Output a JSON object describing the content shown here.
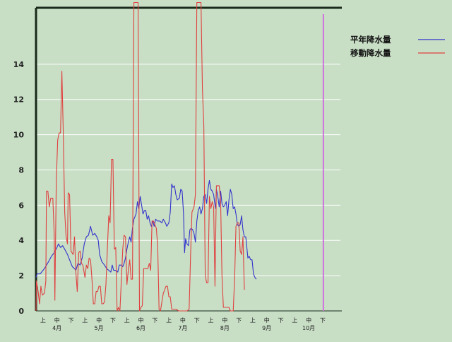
{
  "chart_data": {
    "type": "line",
    "background_color": "#c8dfc5",
    "grid": "horizontal",
    "grid_color": "#ffffff",
    "title": "",
    "xlabel": "",
    "ylabel": "",
    "ylim": [
      0,
      17.2
    ],
    "y_ticks": [
      0,
      2,
      4,
      6,
      8,
      10,
      12,
      14
    ],
    "legend_position": "top-right",
    "dekad_labels": [
      "上",
      "中",
      "下",
      "上",
      "中",
      "下",
      "上",
      "中",
      "下",
      "上",
      "中",
      "下",
      "上",
      "中",
      "下",
      "上",
      "中",
      "下",
      "上",
      "中",
      "下"
    ],
    "month_labels": [
      "4月",
      "5月",
      "6月",
      "7月",
      "8月",
      "9月",
      "10月"
    ],
    "current_marker": {
      "dekad": 20.55,
      "color": "#d070e0"
    },
    "series": [
      {
        "name": "平年降水量",
        "color": "#3333cc",
        "points": [
          [
            0.0,
            1.9
          ],
          [
            0.08,
            2.1
          ],
          [
            0.3,
            2.1
          ],
          [
            0.6,
            2.4
          ],
          [
            0.9,
            2.8
          ],
          [
            1.1,
            3.1
          ],
          [
            1.3,
            3.3
          ],
          [
            1.5,
            3.6
          ],
          [
            1.6,
            3.8
          ],
          [
            1.75,
            3.6
          ],
          [
            1.9,
            3.7
          ],
          [
            2.05,
            3.5
          ],
          [
            2.25,
            3.2
          ],
          [
            2.45,
            2.8
          ],
          [
            2.6,
            2.5
          ],
          [
            2.75,
            2.4
          ],
          [
            2.85,
            2.3
          ],
          [
            3.0,
            2.7
          ],
          [
            3.15,
            2.6
          ],
          [
            3.3,
            3.0
          ],
          [
            3.45,
            3.8
          ],
          [
            3.6,
            4.2
          ],
          [
            3.75,
            4.3
          ],
          [
            3.9,
            4.8
          ],
          [
            4.05,
            4.3
          ],
          [
            4.2,
            4.4
          ],
          [
            4.35,
            4.2
          ],
          [
            4.45,
            4.0
          ],
          [
            4.55,
            3.2
          ],
          [
            4.7,
            2.8
          ],
          [
            4.9,
            2.6
          ],
          [
            5.05,
            2.4
          ],
          [
            5.2,
            2.3
          ],
          [
            5.35,
            2.2
          ],
          [
            5.45,
            2.6
          ],
          [
            5.55,
            2.3
          ],
          [
            5.7,
            2.3
          ],
          [
            5.85,
            2.2
          ],
          [
            5.95,
            2.6
          ],
          [
            6.1,
            2.6
          ],
          [
            6.2,
            2.5
          ],
          [
            6.3,
            2.7
          ],
          [
            6.4,
            3.0
          ],
          [
            6.5,
            3.5
          ],
          [
            6.6,
            3.9
          ],
          [
            6.7,
            4.2
          ],
          [
            6.8,
            3.9
          ],
          [
            6.9,
            4.7
          ],
          [
            7.0,
            5.2
          ],
          [
            7.15,
            5.5
          ],
          [
            7.25,
            6.2
          ],
          [
            7.35,
            5.8
          ],
          [
            7.45,
            6.5
          ],
          [
            7.55,
            6.0
          ],
          [
            7.65,
            5.5
          ],
          [
            7.75,
            5.7
          ],
          [
            7.85,
            5.7
          ],
          [
            7.95,
            5.2
          ],
          [
            8.05,
            5.4
          ],
          [
            8.15,
            5.0
          ],
          [
            8.25,
            4.8
          ],
          [
            8.35,
            5.1
          ],
          [
            8.45,
            4.8
          ],
          [
            8.55,
            5.2
          ],
          [
            8.7,
            5.1
          ],
          [
            8.85,
            5.1
          ],
          [
            9.0,
            5.0
          ],
          [
            9.1,
            5.2
          ],
          [
            9.25,
            5.0
          ],
          [
            9.35,
            4.8
          ],
          [
            9.5,
            5.0
          ],
          [
            9.6,
            5.6
          ],
          [
            9.7,
            7.2
          ],
          [
            9.8,
            7.0
          ],
          [
            9.9,
            7.1
          ],
          [
            10.0,
            6.6
          ],
          [
            10.1,
            6.3
          ],
          [
            10.25,
            6.4
          ],
          [
            10.35,
            6.9
          ],
          [
            10.45,
            6.8
          ],
          [
            10.55,
            5.5
          ],
          [
            10.62,
            3.3
          ],
          [
            10.7,
            4.1
          ],
          [
            10.8,
            3.8
          ],
          [
            10.9,
            3.7
          ],
          [
            11.0,
            4.6
          ],
          [
            11.1,
            4.7
          ],
          [
            11.2,
            4.6
          ],
          [
            11.3,
            4.4
          ],
          [
            11.4,
            3.9
          ],
          [
            11.5,
            5.1
          ],
          [
            11.6,
            5.7
          ],
          [
            11.7,
            5.9
          ],
          [
            11.8,
            5.5
          ],
          [
            11.9,
            5.8
          ],
          [
            12.0,
            6.5
          ],
          [
            12.1,
            6.6
          ],
          [
            12.2,
            6.1
          ],
          [
            12.3,
            6.9
          ],
          [
            12.4,
            7.4
          ],
          [
            12.5,
            6.9
          ],
          [
            12.6,
            6.8
          ],
          [
            12.7,
            6.6
          ],
          [
            12.8,
            6.0
          ],
          [
            12.85,
            5.8
          ],
          [
            12.9,
            6.9
          ],
          [
            13.0,
            6.5
          ],
          [
            13.1,
            5.9
          ],
          [
            13.2,
            6.8
          ],
          [
            13.3,
            6.1
          ],
          [
            13.4,
            5.9
          ],
          [
            13.5,
            6.0
          ],
          [
            13.6,
            6.2
          ],
          [
            13.7,
            5.4
          ],
          [
            13.8,
            6.3
          ],
          [
            13.9,
            6.9
          ],
          [
            14.0,
            6.6
          ],
          [
            14.1,
            5.8
          ],
          [
            14.2,
            5.9
          ],
          [
            14.3,
            5.5
          ],
          [
            14.4,
            4.9
          ],
          [
            14.5,
            4.8
          ],
          [
            14.6,
            4.9
          ],
          [
            14.7,
            5.4
          ],
          [
            14.8,
            4.6
          ],
          [
            14.9,
            4.2
          ],
          [
            15.0,
            4.2
          ],
          [
            15.05,
            3.8
          ],
          [
            15.15,
            3.0
          ],
          [
            15.25,
            3.1
          ],
          [
            15.35,
            2.9
          ],
          [
            15.45,
            2.9
          ],
          [
            15.55,
            2.1
          ],
          [
            15.65,
            1.9
          ],
          [
            15.75,
            1.8
          ]
        ]
      },
      {
        "name": "移動降水量",
        "color": "#e04040",
        "points": [
          [
            0.0,
            0.0
          ],
          [
            0.03,
            1.7
          ],
          [
            0.15,
            1.1
          ],
          [
            0.25,
            0.4
          ],
          [
            0.35,
            1.4
          ],
          [
            0.45,
            0.9
          ],
          [
            0.6,
            1.0
          ],
          [
            0.7,
            1.7
          ],
          [
            0.75,
            6.8
          ],
          [
            0.85,
            6.8
          ],
          [
            0.95,
            5.9
          ],
          [
            1.05,
            6.4
          ],
          [
            1.2,
            6.4
          ],
          [
            1.3,
            4.4
          ],
          [
            1.35,
            0.6
          ],
          [
            1.45,
            7.4
          ],
          [
            1.55,
            9.7
          ],
          [
            1.65,
            10.1
          ],
          [
            1.75,
            10.1
          ],
          [
            1.85,
            13.6
          ],
          [
            1.95,
            10.1
          ],
          [
            2.05,
            5.6
          ],
          [
            2.15,
            4.2
          ],
          [
            2.25,
            3.8
          ],
          [
            2.3,
            6.7
          ],
          [
            2.4,
            6.6
          ],
          [
            2.5,
            3.4
          ],
          [
            2.65,
            3.2
          ],
          [
            2.75,
            4.2
          ],
          [
            2.85,
            2.2
          ],
          [
            2.95,
            1.1
          ],
          [
            3.05,
            3.3
          ],
          [
            3.15,
            3.4
          ],
          [
            3.25,
            2.7
          ],
          [
            3.35,
            2.6
          ],
          [
            3.5,
            1.9
          ],
          [
            3.6,
            2.6
          ],
          [
            3.7,
            2.4
          ],
          [
            3.8,
            3.0
          ],
          [
            3.9,
            2.9
          ],
          [
            4.0,
            1.8
          ],
          [
            4.1,
            0.4
          ],
          [
            4.2,
            0.4
          ],
          [
            4.3,
            1.1
          ],
          [
            4.4,
            1.1
          ],
          [
            4.5,
            1.4
          ],
          [
            4.6,
            1.4
          ],
          [
            4.7,
            0.4
          ],
          [
            4.8,
            0.4
          ],
          [
            4.9,
            0.5
          ],
          [
            5.0,
            1.5
          ],
          [
            5.1,
            3.5
          ],
          [
            5.2,
            5.4
          ],
          [
            5.3,
            5.0
          ],
          [
            5.4,
            8.6
          ],
          [
            5.5,
            8.6
          ],
          [
            5.6,
            3.5
          ],
          [
            5.7,
            3.6
          ],
          [
            5.8,
            0.0
          ],
          [
            5.9,
            0.2
          ],
          [
            6.0,
            0.0
          ],
          [
            6.15,
            2.6
          ],
          [
            6.2,
            3.5
          ],
          [
            6.3,
            4.3
          ],
          [
            6.4,
            4.2
          ],
          [
            6.5,
            1.5
          ],
          [
            6.6,
            2.3
          ],
          [
            6.7,
            2.9
          ],
          [
            6.8,
            1.8
          ],
          [
            6.9,
            1.8
          ],
          [
            7.0,
            17.5
          ],
          [
            7.15,
            17.5
          ],
          [
            7.3,
            17.5
          ],
          [
            7.4,
            0.0
          ],
          [
            7.5,
            0.2
          ],
          [
            7.6,
            0.3
          ],
          [
            7.7,
            2.4
          ],
          [
            7.85,
            2.4
          ],
          [
            8.0,
            2.4
          ],
          [
            8.1,
            2.7
          ],
          [
            8.2,
            2.3
          ],
          [
            8.3,
            5.1
          ],
          [
            8.4,
            5.1
          ],
          [
            8.5,
            4.9
          ],
          [
            8.6,
            4.7
          ],
          [
            8.7,
            3.7
          ],
          [
            8.8,
            0.1
          ],
          [
            8.9,
            0.0
          ],
          [
            9.0,
            0.5
          ],
          [
            9.1,
            1.0
          ],
          [
            9.2,
            1.2
          ],
          [
            9.3,
            1.4
          ],
          [
            9.4,
            1.4
          ],
          [
            9.5,
            0.8
          ],
          [
            9.6,
            0.8
          ],
          [
            9.7,
            0.1
          ],
          [
            9.8,
            0.1
          ],
          [
            10.0,
            0.1
          ],
          [
            10.2,
            0.0
          ],
          [
            10.5,
            0.0
          ],
          [
            10.8,
            0.0
          ],
          [
            10.95,
            0.1
          ],
          [
            11.05,
            3.1
          ],
          [
            11.15,
            5.6
          ],
          [
            11.3,
            5.9
          ],
          [
            11.4,
            6.6
          ],
          [
            11.5,
            17.5
          ],
          [
            11.6,
            17.5
          ],
          [
            11.7,
            17.5
          ],
          [
            11.8,
            17.5
          ],
          [
            11.9,
            12.6
          ],
          [
            12.0,
            10.5
          ],
          [
            12.1,
            2.0
          ],
          [
            12.2,
            1.6
          ],
          [
            12.3,
            1.6
          ],
          [
            12.4,
            6.5
          ],
          [
            12.5,
            5.8
          ],
          [
            12.6,
            6.2
          ],
          [
            12.7,
            5.9
          ],
          [
            12.8,
            1.4
          ],
          [
            12.9,
            7.1
          ],
          [
            13.0,
            7.1
          ],
          [
            13.1,
            7.1
          ],
          [
            13.2,
            6.2
          ],
          [
            13.3,
            2.0
          ],
          [
            13.4,
            0.2
          ],
          [
            13.6,
            0.2
          ],
          [
            13.8,
            0.2
          ],
          [
            13.9,
            0.0
          ],
          [
            14.0,
            0.0
          ],
          [
            14.1,
            0.0
          ],
          [
            14.2,
            1.8
          ],
          [
            14.3,
            4.8
          ],
          [
            14.4,
            5.0
          ],
          [
            14.5,
            5.0
          ],
          [
            14.6,
            3.4
          ],
          [
            14.7,
            3.2
          ],
          [
            14.8,
            4.2
          ],
          [
            14.9,
            1.2
          ]
        ]
      }
    ]
  }
}
